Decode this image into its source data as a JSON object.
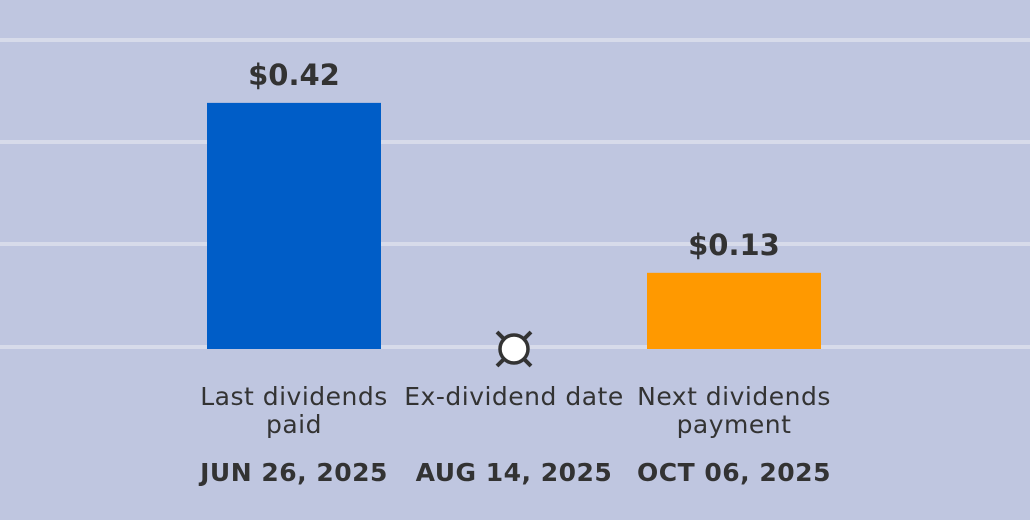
{
  "chart_data": {
    "type": "bar",
    "categories": [
      "Last dividends paid",
      "Ex-dividend date",
      "Next dividends payment"
    ],
    "dates": [
      "JUN 26, 2025",
      "AUG 14, 2025",
      "OCT 06, 2025"
    ],
    "values": [
      0.42,
      null,
      0.13
    ],
    "value_labels": [
      "$0.42",
      null,
      "$0.13"
    ],
    "colors": [
      "#005dc7",
      null,
      "#ff9900"
    ],
    "ylim": [
      0,
      0.5
    ]
  }
}
